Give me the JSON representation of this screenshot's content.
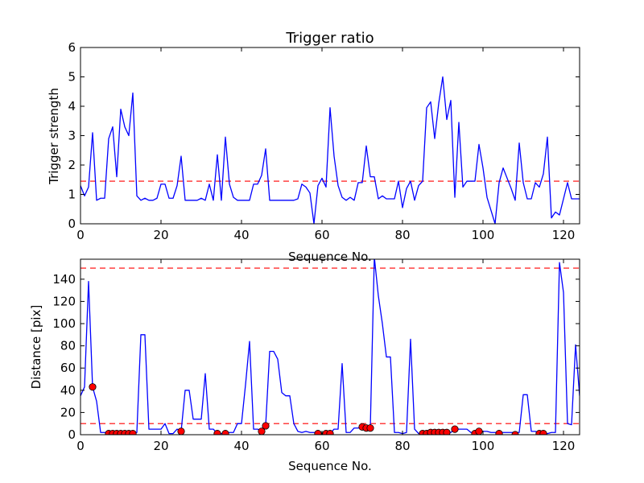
{
  "chart_data": [
    {
      "type": "line",
      "title": "Trigger ratio",
      "xlabel": "Sequence No.",
      "ylabel": "Trigger strength",
      "xlim": [
        0,
        124
      ],
      "ylim": [
        0,
        6
      ],
      "xticks": [
        0,
        20,
        40,
        60,
        80,
        100,
        120
      ],
      "yticks": [
        0,
        1,
        2,
        3,
        4,
        5,
        6
      ],
      "grid": false,
      "line_color": "#0000ff",
      "threshold_color": "#ff0000",
      "series": [
        {
          "x": [
            0,
            1,
            2,
            3,
            4,
            5,
            6,
            7,
            8,
            9,
            10,
            11,
            12,
            13,
            14,
            15,
            16,
            17,
            18,
            19,
            20,
            21,
            22,
            23,
            24,
            25,
            26,
            27,
            28,
            29,
            30,
            31,
            32,
            33,
            34,
            35,
            36,
            37,
            38,
            39,
            40,
            41,
            42,
            43,
            44,
            45,
            46,
            47,
            48,
            49,
            50,
            51,
            52,
            53,
            54,
            55,
            56,
            57,
            58,
            59,
            60,
            61,
            62,
            63,
            64,
            65,
            66,
            67,
            68,
            69,
            70,
            71,
            72,
            73,
            74,
            75,
            76,
            77,
            78,
            79,
            80,
            81,
            82,
            83,
            84,
            85,
            86,
            87,
            88,
            89,
            90,
            91,
            92,
            93,
            94,
            95,
            96,
            97,
            98,
            99,
            100,
            101,
            102,
            103,
            104,
            105,
            106,
            107,
            108,
            109,
            110,
            111,
            112,
            113,
            114,
            115,
            116,
            117,
            118,
            119,
            120,
            121,
            122,
            123,
            124
          ],
          "y": [
            1.3,
            0.95,
            1.25,
            3.1,
            0.8,
            0.87,
            0.87,
            2.9,
            3.3,
            1.6,
            3.9,
            3.3,
            3.0,
            4.45,
            0.95,
            0.8,
            0.87,
            0.8,
            0.8,
            0.87,
            1.35,
            1.35,
            0.87,
            0.87,
            1.3,
            2.3,
            0.8,
            0.8,
            0.8,
            0.8,
            0.87,
            0.8,
            1.35,
            0.8,
            2.35,
            0.8,
            2.95,
            1.35,
            0.9,
            0.8,
            0.8,
            0.8,
            0.8,
            1.35,
            1.35,
            1.65,
            2.55,
            0.8,
            0.8,
            0.8,
            0.8,
            0.8,
            0.8,
            0.8,
            0.85,
            1.35,
            1.25,
            1.05,
            0.0,
            1.3,
            1.55,
            1.25,
            3.95,
            2.3,
            1.3,
            0.9,
            0.8,
            0.9,
            0.8,
            1.4,
            1.4,
            2.65,
            1.6,
            1.6,
            0.85,
            0.95,
            0.85,
            0.85,
            0.85,
            1.45,
            0.55,
            1.2,
            1.45,
            0.8,
            1.3,
            1.45,
            3.95,
            4.15,
            2.9,
            4.1,
            5.0,
            3.55,
            4.2,
            0.9,
            3.45,
            1.25,
            1.45,
            1.45,
            1.45,
            2.7,
            1.9,
            0.9,
            0.45,
            0.0,
            1.4,
            1.9,
            1.55,
            1.2,
            0.8,
            2.75,
            1.4,
            0.85,
            0.85,
            1.4,
            1.25,
            1.7,
            2.95,
            0.2,
            0.4,
            0.3,
            0.85,
            1.4,
            0.85,
            0.85,
            0.85
          ]
        }
      ],
      "thresholds": [
        1.45
      ]
    },
    {
      "type": "line",
      "xlabel": "Sequence No.",
      "ylabel": "Distance [pix]",
      "xlim": [
        0,
        124
      ],
      "ylim": [
        0,
        158
      ],
      "xticks": [
        0,
        20,
        40,
        60,
        80,
        100,
        120
      ],
      "yticks": [
        0,
        20,
        40,
        60,
        80,
        100,
        120,
        140
      ],
      "grid": false,
      "line_color": "#0000ff",
      "marker_color": "#ff0000",
      "threshold_color": "#ff0000",
      "series": [
        {
          "x": [
            0,
            1,
            2,
            3,
            4,
            5,
            6,
            7,
            8,
            9,
            10,
            11,
            12,
            13,
            14,
            15,
            16,
            17,
            18,
            19,
            20,
            21,
            22,
            23,
            24,
            25,
            26,
            27,
            28,
            29,
            30,
            31,
            32,
            33,
            34,
            35,
            36,
            37,
            38,
            39,
            40,
            41,
            42,
            43,
            44,
            45,
            46,
            47,
            48,
            49,
            50,
            51,
            52,
            53,
            54,
            55,
            56,
            57,
            58,
            59,
            60,
            61,
            62,
            63,
            64,
            65,
            66,
            67,
            68,
            69,
            70,
            71,
            72,
            73,
            74,
            75,
            76,
            77,
            78,
            79,
            80,
            81,
            82,
            83,
            84,
            85,
            86,
            87,
            88,
            89,
            90,
            91,
            92,
            93,
            94,
            95,
            96,
            97,
            98,
            99,
            100,
            101,
            102,
            103,
            104,
            105,
            106,
            107,
            108,
            109,
            110,
            111,
            112,
            113,
            114,
            115,
            116,
            117,
            118,
            119,
            120,
            121,
            122,
            123,
            124
          ],
          "y": [
            35,
            43,
            138,
            43,
            30,
            2,
            2,
            1,
            1,
            1,
            1,
            1,
            1,
            1,
            2,
            90,
            90,
            5,
            5,
            5,
            5,
            10,
            1,
            1,
            5,
            3,
            40,
            40,
            14,
            14,
            14,
            55,
            5,
            5,
            1,
            1,
            1,
            2,
            2,
            10,
            10,
            45,
            84,
            5,
            5,
            3,
            8,
            75,
            75,
            68,
            38,
            35,
            35,
            10,
            3,
            2,
            3,
            2,
            2,
            1,
            1,
            1,
            1,
            5,
            5,
            64,
            2,
            2,
            6,
            6,
            7,
            6,
            6,
            160,
            125,
            100,
            70,
            70,
            2,
            2,
            1,
            2,
            86,
            5,
            1,
            1,
            1,
            2,
            2,
            2,
            2,
            2,
            2,
            5,
            5,
            5,
            5,
            2,
            2,
            3,
            3,
            3,
            2,
            2,
            2,
            2,
            2,
            2,
            2,
            2,
            36,
            36,
            3,
            3,
            1,
            1,
            1,
            2,
            2,
            155,
            128,
            10,
            9,
            81,
            35
          ]
        },
        {
          "name": "",
          "x": [
            3,
            7,
            8,
            9,
            10,
            11,
            12,
            13,
            25,
            34,
            36,
            45,
            46,
            59,
            61,
            62,
            70,
            71,
            72,
            85,
            86,
            87,
            88,
            89,
            90,
            91,
            93,
            98,
            99,
            104,
            108,
            114,
            115
          ],
          "y": [
            43,
            1,
            1,
            1,
            1,
            1,
            1,
            1,
            3,
            1,
            1,
            3,
            8,
            1,
            1,
            1,
            7,
            6,
            6,
            1,
            1,
            2,
            2,
            2,
            2,
            2,
            5,
            1,
            3,
            1,
            0,
            1,
            1
          ]
        }
      ],
      "thresholds": [
        150,
        10
      ]
    }
  ]
}
